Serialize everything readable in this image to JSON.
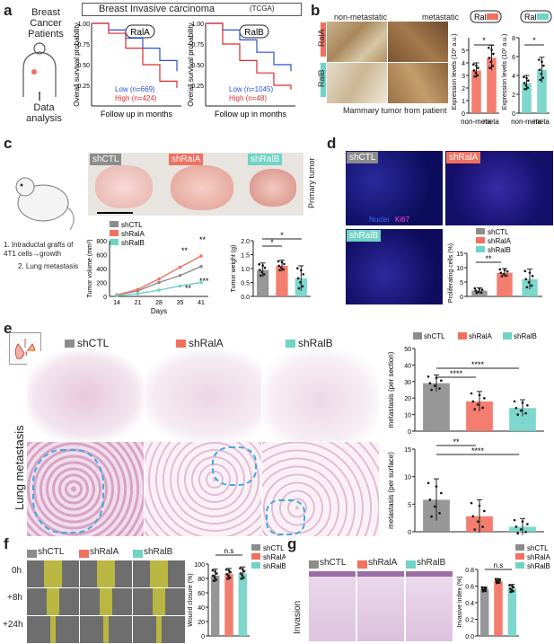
{
  "colors": {
    "ctl": "#8c8c8c",
    "rala": "#f2705f",
    "ralb": "#6fd3c6",
    "low": "#2a4fd6",
    "high": "#e02a2a"
  },
  "panel_a": {
    "label": "a",
    "flow_title": "Breast Cancer Patients",
    "flow_bottom": "Data analysis",
    "title": "Breast Invasive carcinoma",
    "title_sub": "(TCGA)",
    "ylabel": "Overall survival probability",
    "xlabel": "Follow up in months",
    "plot1_tag": "RalA",
    "plot1_low": "Low (n=669)",
    "plot1_high": "High (n=424)",
    "plot2_tag": "RalB",
    "plot2_low": "Low (n=1045)",
    "plot2_high": "High (n=48)",
    "yticks": [
      "1.00",
      "0.75",
      "0.50",
      "0.25"
    ]
  },
  "panel_b": {
    "label": "b",
    "col1": "non-metastatic",
    "col2": "metastatic",
    "row1": "RalA",
    "row2": "RalB",
    "caption": "Mammary tumor from patient",
    "tagA": "RalA",
    "tagB": "RalB",
    "ylabel": "Expression levels (10³ a.u.)",
    "cats": [
      "non-meta",
      "meta"
    ],
    "sig": "*",
    "yticks": [
      "5",
      "4",
      "3",
      "2",
      "1",
      "0"
    ],
    "yticksB": [
      "8",
      "6",
      "4",
      "2",
      "0"
    ]
  },
  "panel_c": {
    "label": "c",
    "leg": [
      "shCTL",
      "shRalA",
      "shRalB"
    ],
    "primary": "Primary tumor",
    "step1": "1. Intraductal grafts of 4T1 cells→growth",
    "step2": "2. Lung metastasis",
    "vol_ylabel": "Tumor volume (mm³)",
    "vol_xlabel": "Days",
    "vol_x": [
      "14",
      "21",
      "28",
      "35",
      "41"
    ],
    "vol_yticks": [
      "800",
      "600",
      "400",
      "200",
      "0"
    ],
    "sig2": "**",
    "sig3": "***",
    "wt_ylabel": "Tumor weight (g)",
    "wt_yticks": [
      "2.0",
      "1.5",
      "1.0",
      "0.5",
      "0.0"
    ],
    "sig1": "*"
  },
  "panel_d": {
    "label": "d",
    "tag1": "shCTL",
    "tag2": "shRalA",
    "tag3": "shRalB",
    "nuclei": "Nuclei",
    "ki67": "Ki67",
    "leg": [
      "shCTL",
      "shRalA",
      "shRalB"
    ],
    "ylabel": "Proliferating cells (%)",
    "yticks": [
      "15",
      "10",
      "5",
      "0"
    ],
    "sig": "**"
  },
  "panel_e": {
    "label": "e",
    "tag1": "shCTL",
    "tag2": "shRalA",
    "tag3": "shRalB",
    "side": "Lung metastasis",
    "leg": [
      "shCTL",
      "shRalA",
      "shRalB"
    ],
    "y1label": "metastasis (per section)",
    "y1ticks": [
      "50",
      "40",
      "30",
      "20",
      "10",
      "0"
    ],
    "y2label": "metastasis (per surface)",
    "y2ticks": [
      "15",
      "10",
      "5",
      "0"
    ],
    "sig4": "****",
    "sig2": "**"
  },
  "panel_f": {
    "label": "f",
    "tags": [
      "shCTL",
      "shRalA",
      "shRalB"
    ],
    "rows": [
      "0h",
      "+8h",
      "+24h"
    ],
    "ylabel": "Wound closure (%)",
    "yticks": [
      "100",
      "80",
      "60",
      "40",
      "20",
      "0"
    ],
    "leg": [
      "shCTL",
      "shRalA",
      "shRalB"
    ],
    "ns": "n.s"
  },
  "panel_g": {
    "label": "g",
    "tags": [
      "shCTL",
      "shRalA",
      "shRalB"
    ],
    "side": "Invasion",
    "ylabel": "Invasive index (%)",
    "yticks": [
      "0.8",
      "0.6",
      "0.4",
      "0.2",
      "0.0"
    ],
    "leg": [
      "shCTL",
      "shRalA",
      "shRalB"
    ],
    "ns": "n.s"
  },
  "chart_data": [
    {
      "type": "line",
      "title": "Breast Invasive carcinoma (TCGA) — RalA",
      "xlabel": "Follow up in months",
      "ylabel": "Overall survival probability",
      "series": [
        {
          "name": "Low (n=669)",
          "values": [
            1.0,
            0.92,
            0.82,
            0.7,
            0.55,
            0.42
          ]
        },
        {
          "name": "High (n=424)",
          "values": [
            1.0,
            0.88,
            0.7,
            0.5,
            0.3,
            0.22
          ]
        }
      ]
    },
    {
      "type": "line",
      "title": "Breast Invasive carcinoma (TCGA) — RalB",
      "xlabel": "Follow up in months",
      "ylabel": "Overall survival probability",
      "series": [
        {
          "name": "Low (n=1045)",
          "values": [
            1.0,
            0.92,
            0.8,
            0.65,
            0.5,
            0.42
          ]
        },
        {
          "name": "High (n=48)",
          "values": [
            1.0,
            0.75,
            0.55,
            0.4,
            0.25,
            0.2
          ]
        }
      ]
    },
    {
      "type": "bar",
      "title": "RalA",
      "categories": [
        "non-meta",
        "meta"
      ],
      "values": [
        3.4,
        4.4
      ],
      "ylabel": "Expression levels (10³ a.u.)",
      "ylim": [
        0,
        6
      ]
    },
    {
      "type": "bar",
      "title": "RalB",
      "categories": [
        "non-meta",
        "meta"
      ],
      "values": [
        3.2,
        4.6
      ],
      "ylabel": "Expression levels (10³ a.u.)",
      "ylim": [
        0,
        8
      ]
    },
    {
      "type": "line",
      "xlabel": "Days",
      "ylabel": "Tumor volume (mm³)",
      "x": [
        14,
        21,
        28,
        35,
        41
      ],
      "ylim": [
        0,
        800
      ],
      "series": [
        {
          "name": "shCTL",
          "values": [
            20,
            80,
            200,
            300,
            430
          ]
        },
        {
          "name": "shRalA",
          "values": [
            20,
            100,
            250,
            420,
            580
          ]
        },
        {
          "name": "shRalB",
          "values": [
            10,
            40,
            90,
            150,
            200
          ]
        }
      ]
    },
    {
      "type": "bar",
      "ylabel": "Tumor weight (g)",
      "categories": [
        "shCTL",
        "shRalA",
        "shRalB"
      ],
      "values": [
        0.95,
        1.1,
        0.65
      ],
      "ylim": [
        0,
        2.0
      ]
    },
    {
      "type": "bar",
      "ylabel": "Proliferating cells (%)",
      "categories": [
        "shCTL",
        "shRalA",
        "shRalB"
      ],
      "values": [
        2.0,
        8.2,
        6.0
      ],
      "ylim": [
        0,
        15
      ]
    },
    {
      "type": "bar",
      "ylabel": "metastasis (per section)",
      "categories": [
        "shCTL",
        "shRalA",
        "shRalB"
      ],
      "values": [
        29,
        18,
        14
      ],
      "ylim": [
        0,
        50
      ]
    },
    {
      "type": "bar",
      "ylabel": "metastasis (per surface)",
      "categories": [
        "shCTL",
        "shRalA",
        "shRalB"
      ],
      "values": [
        5.8,
        2.8,
        0.9
      ],
      "ylim": [
        0,
        15
      ]
    },
    {
      "type": "bar",
      "ylabel": "Wound closure (%)",
      "categories": [
        "shCTL",
        "shRalA",
        "shRalB"
      ],
      "values": [
        84,
        86,
        87
      ],
      "ylim": [
        0,
        100
      ]
    },
    {
      "type": "bar",
      "ylabel": "Invasive index (%)",
      "categories": [
        "shCTL",
        "shRalA",
        "shRalB"
      ],
      "values": [
        0.56,
        0.66,
        0.57
      ],
      "ylim": [
        0,
        0.8
      ]
    }
  ]
}
